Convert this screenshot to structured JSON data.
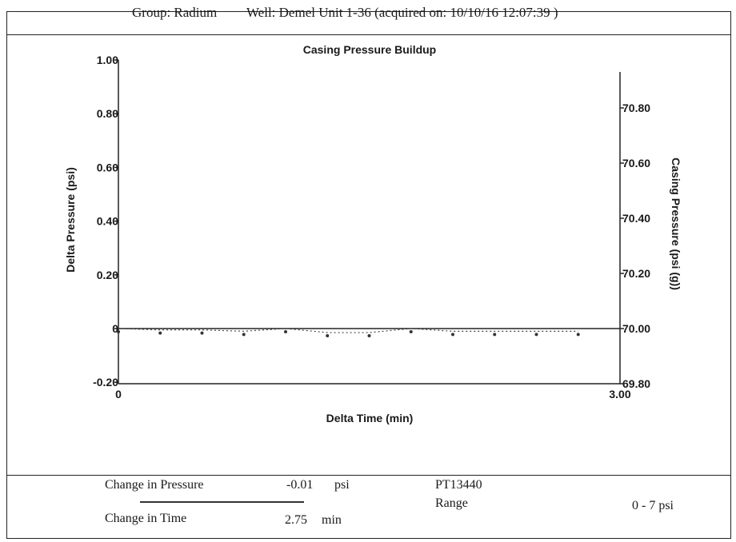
{
  "header": {
    "group": "Group: Radium",
    "well": "Well: Demel Unit 1-36 (acquired on: 10/10/16 12:07:39 )"
  },
  "chart_data": {
    "type": "line",
    "title": "Casing Pressure Buildup",
    "xlabel": "Delta Time (min)",
    "ylabel_left": "Delta Pressure (psi)",
    "ylabel_right": "Casing Pressure (psi (g))",
    "xlim": [
      0,
      3.0
    ],
    "ylim_left": [
      -0.2,
      1.0
    ],
    "ylim_right": [
      69.8,
      70.8
    ],
    "x_ticks": [
      "0",
      "3.00"
    ],
    "y_ticks_left": [
      "1.00",
      "0.80",
      "0.60",
      "0.40",
      "0.20",
      "0",
      "-0.20"
    ],
    "y_ticks_right": [
      "70.80",
      "70.60",
      "70.40",
      "70.20",
      "70.00",
      "69.80"
    ],
    "series": [
      {
        "x": [
          0,
          0.25,
          0.5,
          0.75,
          1.0,
          1.25,
          1.5,
          1.75,
          2.0,
          2.25,
          2.5,
          2.75
        ],
        "y": [
          0,
          -0.005,
          -0.005,
          -0.01,
          0.0,
          -0.015,
          -0.015,
          0.0,
          -0.01,
          -0.01,
          -0.01,
          -0.01
        ]
      }
    ],
    "grid": false
  },
  "footer": {
    "change_pressure_label": "Change in Pressure",
    "change_pressure_value": "-0.01",
    "change_pressure_unit": "psi",
    "change_time_label": "Change in Time",
    "change_time_value": "2.75",
    "change_time_unit": "min",
    "sensor_id": "PT13440",
    "range_label": "Range",
    "range_value": "0 - 7  psi"
  }
}
